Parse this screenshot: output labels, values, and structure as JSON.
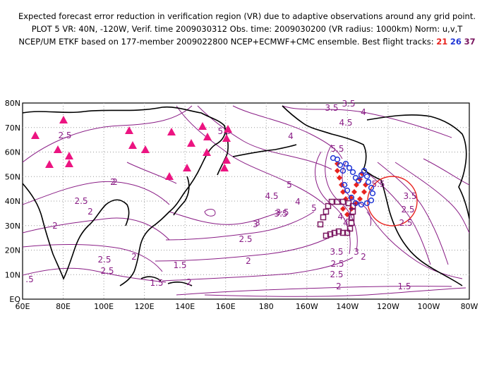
{
  "header": {
    "line1": "Expected forecast error reduction in verification region (VR) due to adaptive observations around any grid point.",
    "line2": "PLOT 5 VR: 40N, -120W, Verif. time 2009030312 Obs. time: 2009030200 (VR radius: 1000km) Norm: u,v,T",
    "line3_prefix": "NCEP/UM ETKF based on 177-member 2009022800 NCEP+ECMWF+CMC ensemble. Best flight tracks:",
    "track_a": "21",
    "track_b": "26",
    "track_c": "37"
  },
  "axes": {
    "lat_labels": [
      "80N",
      "70N",
      "60N",
      "50N",
      "40N",
      "30N",
      "20N",
      "10N",
      "EQ"
    ],
    "lon_labels": [
      "60E",
      "80E",
      "100E",
      "120E",
      "140E",
      "160E",
      "180",
      "160W",
      "140W",
      "120W",
      "100W",
      "80W"
    ]
  },
  "contour_labels": [
    "2.5",
    "3.5",
    "4",
    "4.5",
    "5.5",
    "5.5",
    "2",
    "2.5",
    "2",
    "2",
    "2.5",
    "3.5",
    "3",
    "5.5",
    "5",
    "4.5",
    "3.5",
    "4",
    "5",
    "3.5",
    "3",
    "2.5",
    "3.5",
    "2.5",
    "2",
    "2.5",
    "2",
    "1.5",
    ".5",
    "2",
    "2.5",
    "2",
    "1.5",
    "1.5",
    "2",
    "3.5",
    "2.5",
    "2",
    "2.5",
    "4",
    "4.5",
    "3",
    "4"
  ],
  "colors": {
    "contour": "#8a1e86",
    "track_21": "#e8231f",
    "track_26": "#2137d6",
    "track_37": "#7a1760",
    "raob_triangle": "#ec1481",
    "vr_circle": "#e8231f"
  },
  "verification_region": {
    "center_lat": 40,
    "center_lon_w": 120,
    "radius_km": 1000
  },
  "map_symbols": {
    "coastline": "coastline",
    "raob_site": "magenta-triangle",
    "track_21": "red-diamond",
    "track_26": "blue-circle",
    "track_37": "purple-square"
  }
}
